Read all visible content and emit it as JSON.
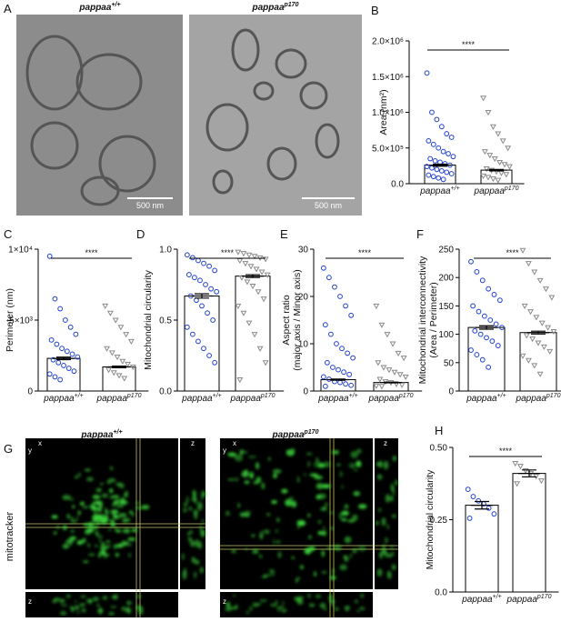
{
  "figure_panels": {
    "A": {
      "panel": "A",
      "labels": [
        {
          "text": "pappaa",
          "superscript": "+/+"
        },
        {
          "text": "pappaa",
          "superscript": "p170"
        }
      ],
      "scale_bars": [
        "500 nm",
        "500 nm"
      ]
    },
    "G": {
      "panel": "G",
      "labels": [
        {
          "text": "pappaa",
          "superscript": "+/+"
        },
        {
          "text": "pappaa",
          "superscript": "p170"
        }
      ],
      "row_label": "mitotracker",
      "axis_letters": [
        "x",
        "y",
        "z"
      ]
    }
  },
  "chart_data": [
    {
      "type": "bar",
      "panel": "B",
      "ylabel": [
        "Area (nm²)"
      ],
      "categories": [
        "pappaa",
        "pappaa"
      ],
      "category_superscripts": [
        "+/+",
        "p170"
      ],
      "values": [
        260000,
        190000
      ],
      "errors": [
        15000,
        10000
      ],
      "colors": [
        "#1f3fd0",
        "#8a8a8a"
      ],
      "markers": [
        "circle",
        "triangle-down"
      ],
      "points": [
        [
          1550000,
          1000000,
          900000,
          800000,
          700000,
          650000,
          600000,
          550000,
          500000,
          450000,
          420000,
          380000,
          350000,
          320000,
          300000,
          280000,
          260000,
          240000,
          220000,
          200000,
          180000,
          160000,
          140000,
          120000,
          100000,
          80000,
          60000
        ],
        [
          1200000,
          1000000,
          800000,
          700000,
          600000,
          500000,
          450000,
          400000,
          350000,
          300000,
          270000,
          240000,
          210000,
          190000,
          170000,
          150000,
          130000,
          110000,
          90000,
          70000,
          50000
        ]
      ],
      "ylim": [
        0,
        2000000
      ],
      "yticks": [
        {
          "value": 0,
          "label": "0.0"
        },
        {
          "value": 500000,
          "label": "5.0×10⁵"
        },
        {
          "value": 1000000,
          "label": "1.0×10⁶"
        },
        {
          "value": 1500000,
          "label": "1.5×10⁶"
        },
        {
          "value": 2000000,
          "label": "2.0×10⁶"
        }
      ],
      "annotation": "****"
    },
    {
      "type": "bar",
      "panel": "C",
      "ylabel": [
        "Perimeter (nm)"
      ],
      "categories": [
        "pappaa",
        "pappaa"
      ],
      "category_superscripts": [
        "+/+",
        "p170"
      ],
      "values": [
        2300,
        1700
      ],
      "errors": [
        90,
        60
      ],
      "colors": [
        "#1f3fd0",
        "#8a8a8a"
      ],
      "markers": [
        "circle",
        "triangle-down"
      ],
      "points": [
        [
          9500,
          6500,
          5800,
          5000,
          4500,
          4000,
          3600,
          3300,
          3000,
          2800,
          2600,
          2400,
          2200,
          2000,
          1800,
          1600,
          1400,
          1200,
          1000,
          800
        ],
        [
          6000,
          5500,
          5000,
          4500,
          4000,
          3500,
          3000,
          2700,
          2400,
          2100,
          1900,
          1700,
          1500,
          1300,
          1100,
          900
        ]
      ],
      "ylim": [
        0,
        10000
      ],
      "yticks": [
        0,
        {
          "value": 5000,
          "label": "5×10³"
        },
        {
          "value": 10000,
          "label": "1×10⁴"
        }
      ],
      "annotation": "****"
    },
    {
      "type": "bar",
      "panel": "D",
      "ylabel": [
        "Mitochondrial circularity"
      ],
      "categories": [
        "pappaa",
        "pappaa"
      ],
      "category_superscripts": [
        "+/+",
        "p170"
      ],
      "values": [
        0.67,
        0.81
      ],
      "errors": [
        0.015,
        0.01
      ],
      "colors": [
        "#1f3fd0",
        "#8a8a8a"
      ],
      "markers": [
        "circle",
        "triangle-down"
      ],
      "points": [
        [
          0.96,
          0.94,
          0.92,
          0.9,
          0.88,
          0.85,
          0.82,
          0.8,
          0.78,
          0.75,
          0.72,
          0.7,
          0.67,
          0.64,
          0.6,
          0.55,
          0.5,
          0.45,
          0.4,
          0.35,
          0.3,
          0.25,
          0.2
        ],
        [
          0.98,
          0.97,
          0.96,
          0.95,
          0.94,
          0.93,
          0.92,
          0.9,
          0.88,
          0.86,
          0.84,
          0.82,
          0.8,
          0.77,
          0.74,
          0.7,
          0.65,
          0.6,
          0.55,
          0.48,
          0.4,
          0.3,
          0.2,
          0.08
        ]
      ],
      "ylim": [
        0,
        1
      ],
      "yticks": [
        {
          "value": 0,
          "label": "0.0"
        },
        0.5,
        {
          "value": 1,
          "label": "1.0"
        }
      ],
      "annotation": "****"
    },
    {
      "type": "bar",
      "panel": "E",
      "ylabel": [
        "Aspect ratio",
        "(major axis / Minor axis)"
      ],
      "categories": [
        "pappaa",
        "pappaa"
      ],
      "category_superscripts": [
        "+/+",
        "p170"
      ],
      "values": [
        2.4,
        1.8
      ],
      "errors": [
        0.12,
        0.08
      ],
      "colors": [
        "#1f3fd0",
        "#8a8a8a"
      ],
      "markers": [
        "circle",
        "triangle-down"
      ],
      "points": [
        [
          26,
          24,
          22,
          20,
          18,
          16,
          14,
          12,
          10,
          9,
          8,
          7,
          6,
          5,
          4.5,
          4,
          3.5,
          3,
          2.5,
          2,
          1.8,
          1.5,
          1.2,
          1.0
        ],
        [
          18,
          14,
          12,
          10,
          8,
          7,
          6,
          5,
          4.5,
          4,
          3.5,
          3,
          2.5,
          2,
          1.8,
          1.5,
          1.3,
          1.1,
          1.0
        ]
      ],
      "ylim": [
        0,
        30
      ],
      "yticks": [
        0,
        10,
        20,
        30
      ],
      "annotation": "****"
    },
    {
      "type": "bar",
      "panel": "F",
      "ylabel": [
        "Mitochondrial interconnectivity",
        "(Area / Perimeter)"
      ],
      "categories": [
        "pappaa",
        "pappaa"
      ],
      "category_superscripts": [
        "+/+",
        "p170"
      ],
      "values": [
        112,
        103
      ],
      "errors": [
        3,
        2.5
      ],
      "colors": [
        "#1f3fd0",
        "#8a8a8a"
      ],
      "markers": [
        "circle",
        "triangle-down"
      ],
      "points": [
        [
          228,
          210,
          195,
          180,
          170,
          160,
          150,
          140,
          132,
          125,
          118,
          112,
          106,
          100,
          94,
          88,
          80,
          72,
          64,
          55,
          42
        ],
        [
          248,
          225,
          210,
          195,
          180,
          165,
          150,
          140,
          130,
          120,
          112,
          105,
          98,
          92,
          85,
          78,
          70,
          62,
          54,
          45,
          30
        ]
      ],
      "ylim": [
        0,
        250
      ],
      "yticks": [
        0,
        50,
        100,
        150,
        200,
        250
      ],
      "annotation": "****"
    },
    {
      "type": "bar",
      "panel": "H",
      "ylabel": [
        "Mitochondrial circularity"
      ],
      "categories": [
        "pappaa",
        "pappaa"
      ],
      "category_superscripts": [
        "+/+",
        "p170"
      ],
      "values": [
        0.3,
        0.41
      ],
      "errors": [
        0.013,
        0.012
      ],
      "colors": [
        "#1f3fd0",
        "#8a8a8a"
      ],
      "markers": [
        "circle",
        "triangle-down"
      ],
      "points": [
        [
          0.355,
          0.33,
          0.315,
          0.305,
          0.29,
          0.27,
          0.255
        ],
        [
          0.445,
          0.435,
          0.42,
          0.41,
          0.4,
          0.385,
          0.375
        ]
      ],
      "ylim": [
        0,
        0.5
      ],
      "yticks": [
        {
          "value": 0,
          "label": "0.0"
        },
        0.25,
        {
          "value": 0.5,
          "label": "0.50"
        }
      ],
      "annotation": "****"
    }
  ]
}
